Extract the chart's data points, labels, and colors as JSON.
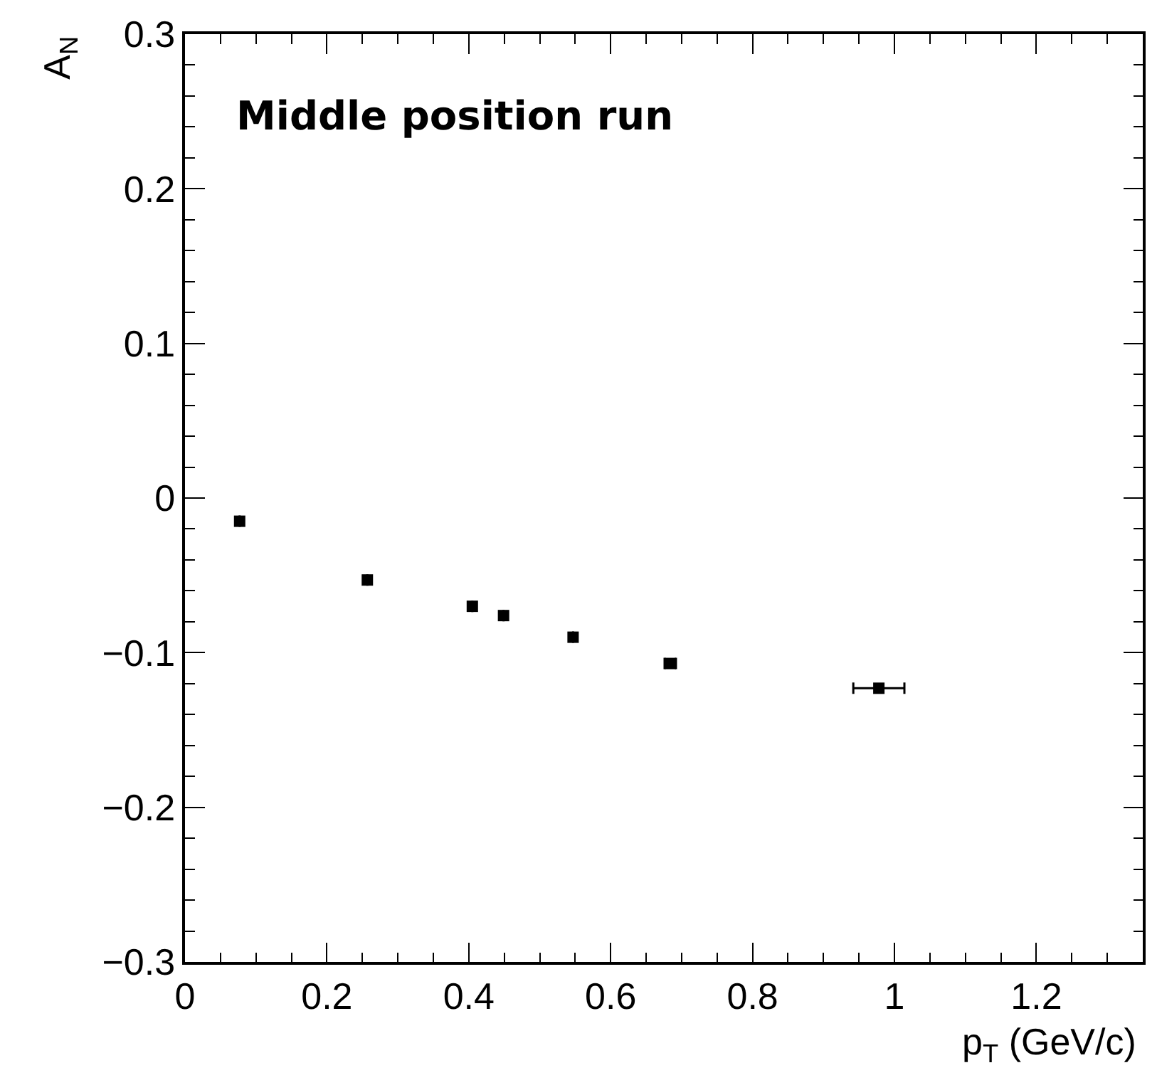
{
  "chart_data": {
    "type": "scatter",
    "x": [
      0.077,
      0.257,
      0.405,
      0.449,
      0.547,
      0.684,
      0.978
    ],
    "series": [
      {
        "color": "#000000",
        "values": [
          -0.015,
          -0.053,
          -0.07,
          -0.076,
          -0.09,
          -0.107,
          -0.123
        ],
        "xerrors": [
          null,
          null,
          null,
          null,
          null,
          0.008,
          0.036
        ]
      }
    ],
    "xlabel": "p$_{T}$ (GeV/c)",
    "ylabel": "A$_{N}$",
    "annotations": [
      "Middle position run"
    ],
    "xlim": [
      0,
      1.35
    ],
    "xticks": [
      0,
      0.2,
      0.4,
      0.6,
      0.8,
      1,
      1.2
    ],
    "ylim": [
      -0.3,
      0.3
    ],
    "yticks": [
      {
        "value": -0.3,
        "label": "−0.3"
      },
      {
        "value": -0.2,
        "label": "−0.2"
      },
      {
        "value": -0.1,
        "label": "−0.1"
      },
      0,
      0.1,
      0.2,
      0.3
    ],
    "marker": "square"
  }
}
